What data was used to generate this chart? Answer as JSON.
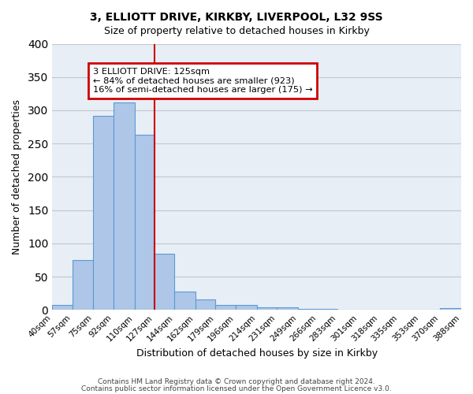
{
  "title_line1": "3, ELLIOTT DRIVE, KIRKBY, LIVERPOOL, L32 9SS",
  "title_line2": "Size of property relative to detached houses in Kirkby",
  "xlabel": "Distribution of detached houses by size in Kirkby",
  "ylabel": "Number of detached properties",
  "bin_edges": [
    40,
    57,
    75,
    92,
    110,
    127,
    144,
    162,
    179,
    196,
    214,
    231,
    249,
    266,
    283,
    301,
    318,
    335,
    353,
    370,
    388
  ],
  "bin_labels": [
    "40sqm",
    "57sqm",
    "75sqm",
    "92sqm",
    "110sqm",
    "127sqm",
    "144sqm",
    "162sqm",
    "179sqm",
    "196sqm",
    "214sqm",
    "231sqm",
    "249sqm",
    "266sqm",
    "283sqm",
    "301sqm",
    "318sqm",
    "335sqm",
    "353sqm",
    "370sqm",
    "388sqm"
  ],
  "bar_heights": [
    8,
    75,
    292,
    312,
    263,
    85,
    28,
    16,
    8,
    7,
    4,
    4,
    2,
    2,
    0,
    0,
    0,
    0,
    0,
    3
  ],
  "ylim": [
    0,
    400
  ],
  "yticks": [
    0,
    50,
    100,
    150,
    200,
    250,
    300,
    350,
    400
  ],
  "bar_color": "#aec6e8",
  "bar_edge_color": "#5b9bd5",
  "vline_position": 127,
  "vline_color": "#cc0000",
  "annotation_title": "3 ELLIOTT DRIVE: 125sqm",
  "annotation_line1": "← 84% of detached houses are smaller (923)",
  "annotation_line2": "16% of semi-detached houses are larger (175) →",
  "annotation_box_color": "#cc0000",
  "footer_line1": "Contains HM Land Registry data © Crown copyright and database right 2024.",
  "footer_line2": "Contains public sector information licensed under the Open Government Licence v3.0.",
  "background_color": "#e8eef5",
  "plot_background": "#ffffff",
  "grid_color": "#c0c8d0"
}
